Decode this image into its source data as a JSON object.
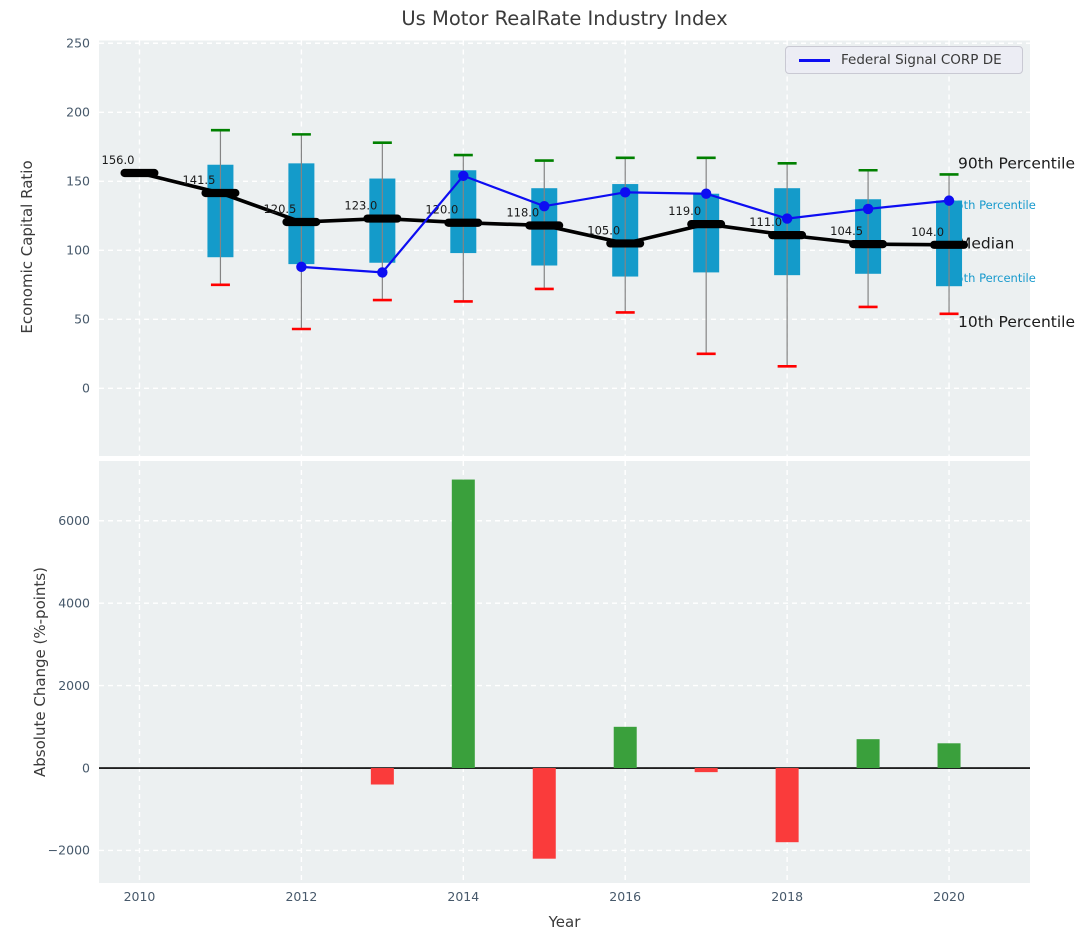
{
  "figure": {
    "title": "Us Motor RealRate Industry Index",
    "legend": {
      "label": "Federal Signal CORP DE"
    }
  },
  "colors": {
    "page_background": "#ffffff",
    "plot_bg": "#ecf0f1",
    "grid": "#ffffff",
    "box_fill": "#149bca",
    "whisker": "#848484",
    "cap_high": "#008000",
    "cap_low": "#ff0000",
    "median": "#000000",
    "company_line": "#0d0df2",
    "bar_positive": "#3aa03c",
    "bar_negative": "#fa3b3b",
    "tick_label": "#47596b",
    "title_text": "#3a3a3a",
    "annotation_major": "#1a1a1a",
    "annotation_minor": "#189acd"
  },
  "chart_data": [
    {
      "type": "boxplot-line",
      "title": "Us Motor RealRate Industry Index",
      "ylabel": "Economic Capital Ratio",
      "grid": true,
      "legend_position": "upper right",
      "ylim": [
        -49,
        252
      ],
      "xlim": [
        2009.5,
        2021.0
      ],
      "yticks": [
        0,
        50,
        100,
        150,
        200,
        250
      ],
      "ytick_labels": [
        "0",
        "50",
        "100",
        "150",
        "200",
        "250"
      ],
      "xticks": [
        2010,
        2012,
        2014,
        2016,
        2018,
        2020
      ],
      "years": [
        2010,
        2011,
        2012,
        2013,
        2014,
        2015,
        2016,
        2017,
        2018,
        2019,
        2020
      ],
      "boxes": {
        "median": [
          156.0,
          141.5,
          120.5,
          123.0,
          120.0,
          118.0,
          105.0,
          119.0,
          111.0,
          104.5,
          104.0
        ],
        "median_labels": [
          "156.0",
          "141.5",
          "120.5",
          "123.0",
          "120.0",
          "118.0",
          "105.0",
          "119.0",
          "111.0",
          "104.5",
          "104.0"
        ],
        "q1": [
          null,
          95,
          90,
          91,
          98,
          89,
          81,
          84,
          82,
          83,
          74
        ],
        "q3": [
          null,
          162,
          163,
          152,
          158,
          145,
          148,
          141,
          145,
          137,
          136
        ],
        "whisker_low": [
          null,
          75,
          43,
          64,
          63,
          72,
          55,
          25,
          16,
          59,
          54
        ],
        "whisker_high": [
          null,
          187,
          184,
          178,
          169,
          165,
          167,
          167,
          163,
          158,
          155
        ]
      },
      "series": [
        {
          "name": "Federal Signal CORP DE",
          "x": [
            2012,
            2013,
            2014,
            2015,
            2016,
            2017,
            2018,
            2019,
            2020
          ],
          "y": [
            88,
            84,
            154,
            132,
            142,
            141,
            123,
            130,
            136
          ]
        }
      ],
      "annotations": [
        {
          "text": "90th Percentile",
          "value": 163,
          "style": "major"
        },
        {
          "text": "75th Percentile",
          "value": 133,
          "style": "minor"
        },
        {
          "text": "Median",
          "value": 105,
          "style": "major"
        },
        {
          "text": "25th Percentile",
          "value": 80,
          "style": "minor"
        },
        {
          "text": "10th Percentile",
          "value": 48,
          "style": "major"
        }
      ]
    },
    {
      "type": "bar",
      "ylabel": "Absolute Change (%-points)",
      "xlabel": "Year",
      "grid": true,
      "zero_line": true,
      "ylim": [
        -2790,
        7450
      ],
      "xlim": [
        2009.5,
        2021.0
      ],
      "yticks": [
        -2000,
        0,
        2000,
        4000,
        6000
      ],
      "ytick_labels": [
        "−2000",
        "0",
        "2000",
        "4000",
        "6000"
      ],
      "xticks": [
        2010,
        2012,
        2014,
        2016,
        2018,
        2020
      ],
      "xtick_labels": [
        "2010",
        "2012",
        "2014",
        "2016",
        "2018",
        "2020"
      ],
      "x": [
        2013,
        2014,
        2015,
        2016,
        2017,
        2018,
        2019,
        2020
      ],
      "values": [
        -400,
        7000,
        -2200,
        1000,
        -100,
        -1800,
        700,
        600
      ]
    }
  ]
}
